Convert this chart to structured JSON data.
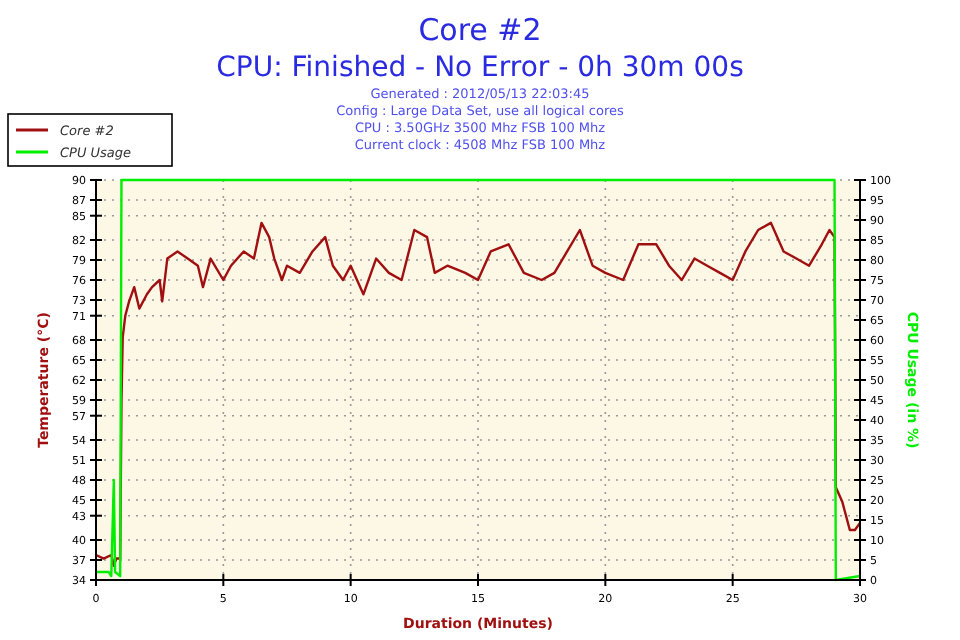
{
  "chart_data": {
    "type": "line",
    "title": "Core #2",
    "subtitle": "CPU: Finished - No Error - 0h 30m 00s",
    "annotations": [
      "Generated : 2012/05/13 22:03:45",
      "Config : Large Data Set, use all logical cores",
      "CPU : 3.50GHz 3500 Mhz FSB 100 Mhz",
      "Current clock : 4508 Mhz FSB 100 Mhz"
    ],
    "xlabel": "Duration (Minutes)",
    "ylabel": "Temperature (°C)",
    "y2label": "CPU Usage (in %)",
    "xlim": [
      0,
      30
    ],
    "xticks": [
      0,
      5,
      10,
      15,
      20,
      25,
      30
    ],
    "ylim": [
      34,
      90
    ],
    "yticks": [
      34,
      {
        "value": 36.8,
        "label": "37"
      },
      {
        "value": 39.6,
        "label": "40"
      },
      43,
      {
        "value": 45.2,
        "label": "45"
      },
      48,
      {
        "value": 50.8,
        "label": "51"
      },
      {
        "value": 53.6,
        "label": "54"
      },
      57,
      {
        "value": 59.2,
        "label": "59"
      },
      62,
      {
        "value": 64.8,
        "label": "65"
      },
      {
        "value": 67.6,
        "label": "68"
      },
      71,
      {
        "value": 73.2,
        "label": "73"
      },
      76,
      {
        "value": 78.8,
        "label": "79"
      },
      {
        "value": 81.6,
        "label": "82"
      },
      85,
      {
        "value": 87.2,
        "label": "87"
      },
      90
    ],
    "y2lim": [
      0,
      100
    ],
    "y2ticks": [
      0,
      5,
      10,
      15,
      20,
      25,
      30,
      35,
      40,
      45,
      50,
      55,
      60,
      65,
      70,
      75,
      80,
      85,
      90,
      95,
      100
    ],
    "grid": true,
    "legend": "top left",
    "marker": "none",
    "line_style": "solid",
    "series": [
      {
        "name": "Core #2",
        "color": "#a01010",
        "x": [
          0,
          0.3,
          0.6,
          0.7,
          0.8,
          0.95,
          1.0,
          1.05,
          1.15,
          1.3,
          1.5,
          1.7,
          2.0,
          2.2,
          2.5,
          2.6,
          2.8,
          3.2,
          3.6,
          4.0,
          4.2,
          4.5,
          5.0,
          5.3,
          5.8,
          6.2,
          6.5,
          6.8,
          7.0,
          7.3,
          7.5,
          8.0,
          8.5,
          9.0,
          9.3,
          9.7,
          10.0,
          10.5,
          11.0,
          11.5,
          12.0,
          12.5,
          13.0,
          13.3,
          13.8,
          14.5,
          15.0,
          15.5,
          16.2,
          16.8,
          17.5,
          18.0,
          18.5,
          19.0,
          19.5,
          20.0,
          20.7,
          21.3,
          22.0,
          22.5,
          23.0,
          23.5,
          24.0,
          24.5,
          25.0,
          25.5,
          26.0,
          26.5,
          27.0,
          27.5,
          28.0,
          28.5,
          28.8,
          29.0,
          29.05,
          29.3,
          29.6,
          29.8,
          30
        ],
        "values": [
          37.5,
          37,
          37.5,
          36,
          37,
          37,
          59,
          68,
          71,
          73,
          75,
          72,
          74,
          75,
          76,
          73,
          79,
          80,
          79,
          78,
          75,
          79,
          76,
          78,
          80,
          79,
          84,
          82,
          79,
          76,
          78,
          77,
          80,
          82,
          78,
          76,
          78,
          74,
          79,
          77,
          76,
          83,
          82,
          77,
          78,
          77,
          76,
          80,
          81,
          77,
          76,
          77,
          80,
          83,
          78,
          77,
          76,
          81,
          81,
          78,
          76,
          79,
          78,
          77,
          76,
          80,
          83,
          84,
          80,
          79,
          78,
          81,
          83,
          82,
          47,
          45,
          41,
          41,
          42
        ]
      },
      {
        "name": "CPU Usage",
        "color": "#00ee00",
        "axis": "y2",
        "x": [
          0,
          0.5,
          0.6,
          0.7,
          0.75,
          0.95,
          1.0,
          29.0,
          29.05,
          30
        ],
        "values": [
          2,
          2,
          1,
          25,
          2,
          1,
          100,
          100,
          0,
          1
        ]
      }
    ]
  }
}
